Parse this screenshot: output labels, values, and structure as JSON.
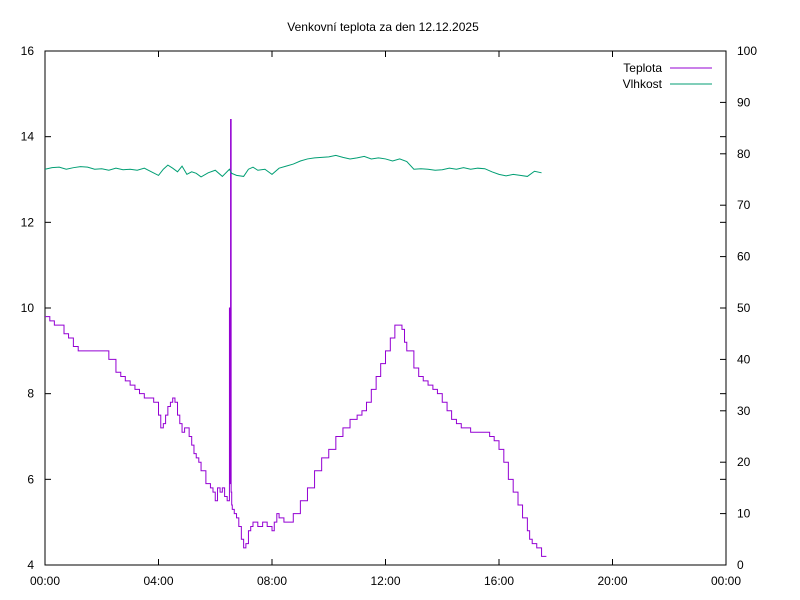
{
  "chart_data": {
    "type": "line",
    "title": "Venkovní teplota za den 12.12.2025",
    "xlabel": "",
    "ylabel": "",
    "y2label": "",
    "grid": false,
    "legend_position": "top-right",
    "x_unit": "hours",
    "xlim": [
      0,
      24
    ],
    "ylim": [
      4,
      16
    ],
    "y2lim": [
      0,
      100
    ],
    "x_ticks": [
      {
        "v": 0,
        "label": "00:00"
      },
      {
        "v": 4,
        "label": "04:00"
      },
      {
        "v": 8,
        "label": "08:00"
      },
      {
        "v": 12,
        "label": "12:00"
      },
      {
        "v": 16,
        "label": "16:00"
      },
      {
        "v": 20,
        "label": "20:00"
      },
      {
        "v": 24,
        "label": "00:00"
      }
    ],
    "y_ticks": [
      "4",
      "6",
      "8",
      "10",
      "12",
      "14",
      "16"
    ],
    "y2_ticks": [
      "0",
      "10",
      "20",
      "30",
      "40",
      "50",
      "60",
      "70",
      "80",
      "90",
      "100"
    ],
    "series": [
      {
        "name": "Teplota",
        "axis": "left",
        "color": "#9400d3",
        "step": true,
        "x": [
          0,
          0.17,
          0.33,
          0.5,
          0.67,
          0.83,
          1,
          1.17,
          1.5,
          2,
          2.25,
          2.5,
          2.67,
          2.83,
          3,
          3.17,
          3.33,
          3.5,
          3.67,
          3.83,
          4,
          4.08,
          4.17,
          4.25,
          4.33,
          4.42,
          4.5,
          4.58,
          4.67,
          4.75,
          4.83,
          4.92,
          5,
          5.08,
          5.17,
          5.25,
          5.33,
          5.42,
          5.5,
          5.67,
          5.83,
          5.92,
          6,
          6.08,
          6.17,
          6.25,
          6.33,
          6.42,
          6.5,
          6.52,
          6.54,
          6.56,
          6.58,
          6.6,
          6.67,
          6.75,
          6.83,
          6.92,
          7,
          7.08,
          7.17,
          7.25,
          7.33,
          7.5,
          7.67,
          7.83,
          8,
          8.08,
          8.17,
          8.25,
          8.42,
          8.58,
          8.75,
          9,
          9.25,
          9.5,
          9.75,
          10,
          10.25,
          10.5,
          10.75,
          11,
          11.17,
          11.33,
          11.5,
          11.67,
          11.83,
          12,
          12.17,
          12.33,
          12.5,
          12.58,
          12.67,
          12.75,
          12.83,
          13,
          13.17,
          13.33,
          13.5,
          13.67,
          13.83,
          14,
          14.17,
          14.33,
          14.5,
          14.67,
          15,
          15.33,
          15.5,
          15.67,
          15.83,
          16,
          16.17,
          16.33,
          16.5,
          16.67,
          16.83,
          17,
          17.08,
          17.17,
          17.33,
          17.5
        ],
        "y": [
          9.8,
          9.7,
          9.6,
          9.6,
          9.4,
          9.3,
          9.1,
          9.0,
          9.0,
          9.0,
          8.8,
          8.5,
          8.4,
          8.3,
          8.2,
          8.1,
          8.0,
          7.9,
          7.9,
          7.8,
          7.5,
          7.2,
          7.3,
          7.5,
          7.7,
          7.8,
          7.9,
          7.8,
          7.5,
          7.3,
          7.1,
          7.2,
          7.2,
          7.0,
          6.8,
          6.6,
          6.5,
          6.4,
          6.2,
          5.9,
          5.8,
          5.7,
          5.5,
          5.8,
          5.7,
          5.8,
          5.6,
          5.5,
          10.0,
          5.9,
          14.4,
          5.7,
          5.4,
          5.3,
          5.2,
          5.1,
          4.9,
          4.6,
          4.4,
          4.5,
          4.8,
          4.9,
          5.0,
          4.9,
          5.0,
          4.9,
          4.8,
          5.0,
          5.2,
          5.1,
          5.0,
          5.0,
          5.2,
          5.5,
          5.8,
          6.2,
          6.5,
          6.7,
          7.0,
          7.2,
          7.4,
          7.5,
          7.6,
          7.8,
          8.1,
          8.4,
          8.7,
          9.0,
          9.3,
          9.6,
          9.6,
          9.5,
          9.2,
          9.0,
          9.0,
          8.6,
          8.4,
          8.3,
          8.2,
          8.1,
          8.0,
          7.8,
          7.6,
          7.4,
          7.3,
          7.2,
          7.1,
          7.1,
          7.1,
          7.0,
          6.9,
          6.7,
          6.4,
          6.0,
          5.7,
          5.4,
          5.1,
          4.8,
          4.6,
          4.5,
          4.4,
          4.2
        ],
        "x_end": 17.67
      },
      {
        "name": "Vlhkost",
        "axis": "right",
        "color": "#009e73",
        "step": false,
        "x": [
          0,
          0.25,
          0.5,
          0.75,
          1,
          1.25,
          1.5,
          1.75,
          2,
          2.25,
          2.5,
          2.75,
          3,
          3.25,
          3.5,
          3.75,
          4,
          4.17,
          4.33,
          4.5,
          4.67,
          4.83,
          5,
          5.17,
          5.33,
          5.5,
          5.75,
          6,
          6.25,
          6.5,
          6.58,
          6.75,
          7,
          7.17,
          7.33,
          7.5,
          7.75,
          8,
          8.25,
          8.5,
          8.75,
          9,
          9.25,
          9.5,
          9.75,
          10,
          10.25,
          10.5,
          10.75,
          11,
          11.25,
          11.5,
          11.75,
          12,
          12.25,
          12.5,
          12.75,
          13,
          13.25,
          13.5,
          13.75,
          14,
          14.25,
          14.5,
          14.75,
          15,
          15.25,
          15.5,
          15.75,
          16,
          16.25,
          16.5,
          16.75,
          17,
          17.25,
          17.5
        ],
        "y": [
          77.0,
          77.3,
          77.4,
          77.0,
          77.3,
          77.5,
          77.4,
          77.0,
          77.1,
          76.8,
          77.2,
          76.9,
          77.0,
          76.8,
          77.2,
          76.5,
          75.8,
          77.0,
          77.8,
          77.2,
          76.5,
          77.6,
          76.0,
          76.5,
          76.2,
          75.5,
          76.3,
          76.8,
          75.6,
          77.0,
          76.2,
          75.8,
          75.6,
          77.0,
          77.4,
          76.8,
          77.0,
          76.0,
          77.2,
          77.6,
          78.0,
          78.6,
          79.0,
          79.2,
          79.3,
          79.4,
          79.7,
          79.3,
          79.0,
          79.2,
          79.5,
          79.0,
          79.2,
          79.0,
          78.6,
          79.0,
          78.5,
          77.0,
          77.1,
          77.0,
          76.8,
          76.9,
          77.2,
          77.0,
          77.3,
          77.0,
          77.2,
          77.1,
          76.5,
          76.0,
          75.7,
          76.0,
          75.8,
          75.6,
          76.6,
          76.3
        ]
      }
    ]
  }
}
